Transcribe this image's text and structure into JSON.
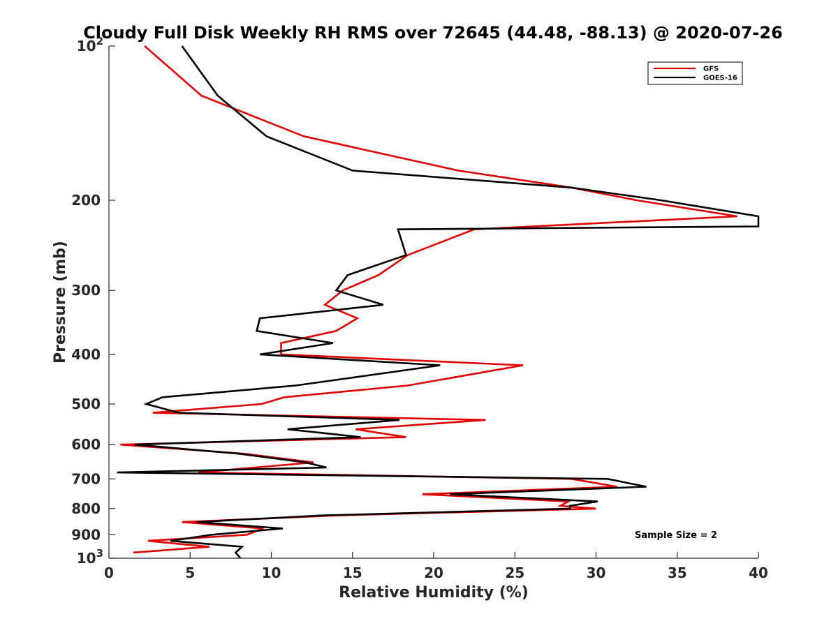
{
  "chart_data": {
    "type": "line",
    "title": "Cloudy Full Disk Weekly RH RMS over 72645 (44.48, -88.13) @ 2020-07-26",
    "xlabel": "Relative Humidity (%)",
    "ylabel": "Pressure (mb)",
    "xlim": [
      0,
      40
    ],
    "ylim": [
      100,
      1000
    ],
    "y_scale": "log",
    "y_reversed": true,
    "x_ticks": [
      0,
      5,
      10,
      15,
      20,
      25,
      30,
      35,
      40
    ],
    "x_tick_labels": [
      "0",
      "5",
      "10",
      "15",
      "20",
      "25",
      "30",
      "35",
      "40"
    ],
    "y_ticks": [
      200,
      300,
      400,
      500,
      600,
      700,
      800,
      900
    ],
    "y_tick_labels": [
      "200",
      "300",
      "400",
      "500",
      "600",
      "700",
      "800",
      "900"
    ],
    "y_end_labels": {
      "top": {
        "value": 100,
        "base": "10",
        "exp": "2"
      },
      "bottom": {
        "value": 1000,
        "base": "10",
        "exp": "3"
      }
    },
    "grid": false,
    "legend": "top-right",
    "annotation": "Sample Size = 2",
    "series": [
      {
        "name": "GFS",
        "color": "#e00000",
        "points": [
          [
            2.2,
            100
          ],
          [
            5.7,
            125
          ],
          [
            12,
            150
          ],
          [
            21.5,
            175
          ],
          [
            28.5,
            189
          ],
          [
            32.5,
            200
          ],
          [
            38.7,
            215
          ],
          [
            22.5,
            228
          ],
          [
            18.4,
            256
          ],
          [
            16.6,
            280
          ],
          [
            14.4,
            300
          ],
          [
            13.3,
            320
          ],
          [
            15.3,
            340
          ],
          [
            14,
            360
          ],
          [
            10.6,
            380
          ],
          [
            10.6,
            400
          ],
          [
            25.5,
            420
          ],
          [
            18.4,
            460
          ],
          [
            10.8,
            485
          ],
          [
            9.4,
            500
          ],
          [
            2.7,
            520
          ],
          [
            23.2,
            537
          ],
          [
            15.2,
            560
          ],
          [
            18.3,
            580
          ],
          [
            0.7,
            600
          ],
          [
            8.3,
            625
          ],
          [
            12.6,
            650
          ],
          [
            5.5,
            680
          ],
          [
            28.5,
            700
          ],
          [
            31.3,
            725
          ],
          [
            19.3,
            750
          ],
          [
            28.3,
            775
          ],
          [
            27.8,
            790
          ],
          [
            30,
            800
          ],
          [
            14,
            825
          ],
          [
            4.5,
            850
          ],
          [
            9.5,
            875
          ],
          [
            8.5,
            900
          ],
          [
            2.4,
            925
          ],
          [
            6.2,
            950
          ],
          [
            1.5,
            975
          ]
        ]
      },
      {
        "name": "GOES-16",
        "color": "#000000",
        "points": [
          [
            4.5,
            100
          ],
          [
            6.7,
            125
          ],
          [
            9.7,
            150
          ],
          [
            15,
            175
          ],
          [
            28.5,
            189
          ],
          [
            34,
            200
          ],
          [
            40,
            215
          ],
          [
            40,
            225
          ],
          [
            17.8,
            228
          ],
          [
            18.3,
            256
          ],
          [
            14.7,
            280
          ],
          [
            14,
            300
          ],
          [
            16.9,
            320
          ],
          [
            9.3,
            340
          ],
          [
            9.1,
            360
          ],
          [
            13.8,
            380
          ],
          [
            9.3,
            400
          ],
          [
            20.4,
            420
          ],
          [
            11.5,
            460
          ],
          [
            3.3,
            485
          ],
          [
            2.3,
            500
          ],
          [
            4.3,
            520
          ],
          [
            17.9,
            537
          ],
          [
            11,
            560
          ],
          [
            15.5,
            580
          ],
          [
            1.6,
            600
          ],
          [
            8,
            625
          ],
          [
            12.1,
            650
          ],
          [
            13.4,
            665
          ],
          [
            0.5,
            680
          ],
          [
            30.7,
            700
          ],
          [
            33.1,
            725
          ],
          [
            21,
            750
          ],
          [
            30.1,
            775
          ],
          [
            28.4,
            790
          ],
          [
            28.4,
            800
          ],
          [
            13.1,
            825
          ],
          [
            5.4,
            850
          ],
          [
            10.7,
            875
          ],
          [
            6.3,
            900
          ],
          [
            3.8,
            925
          ],
          [
            8.2,
            950
          ],
          [
            7.8,
            975
          ],
          [
            8.1,
            1000
          ]
        ]
      }
    ]
  }
}
